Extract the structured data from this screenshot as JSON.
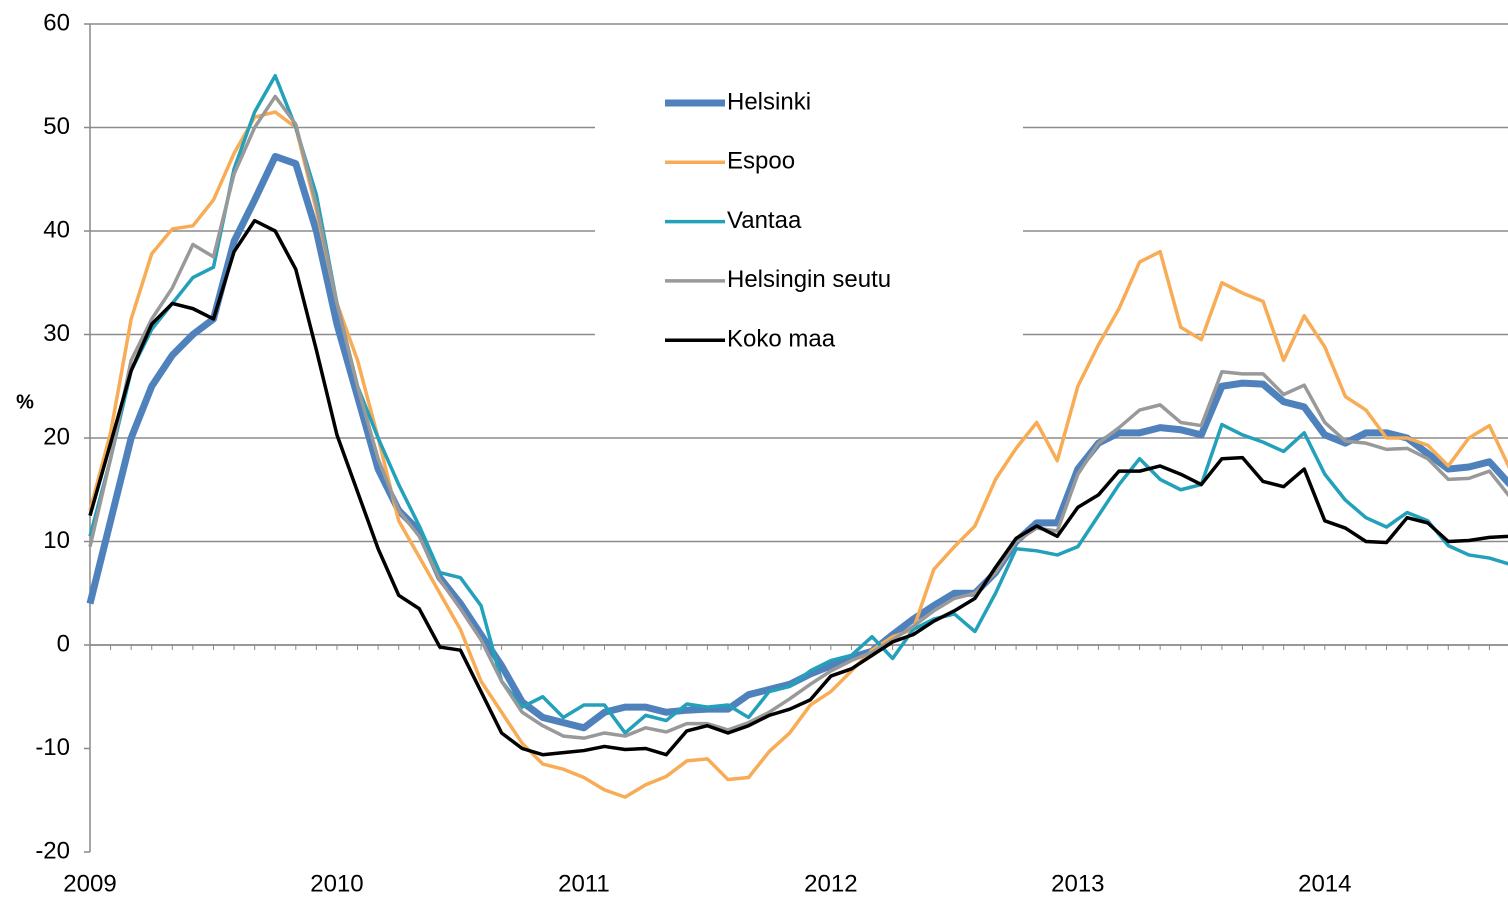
{
  "chart_data": {
    "type": "line",
    "y_label": "%",
    "categories": [
      "2009",
      null,
      null,
      null,
      null,
      null,
      null,
      null,
      null,
      null,
      null,
      null,
      "2010",
      null,
      null,
      null,
      null,
      null,
      null,
      null,
      null,
      null,
      null,
      null,
      "2011",
      null,
      null,
      null,
      null,
      null,
      null,
      null,
      null,
      null,
      null,
      null,
      "2012",
      null,
      null,
      null,
      null,
      null,
      null,
      null,
      null,
      null,
      null,
      null,
      "2013",
      null,
      null,
      null,
      null,
      null,
      null,
      null,
      null,
      null,
      null,
      null,
      "2014",
      null,
      null,
      null,
      null,
      null,
      null,
      null,
      null,
      null
    ],
    "ylim": [
      -20,
      60
    ],
    "yticks": [
      -20,
      -10,
      0,
      10,
      20,
      30,
      40,
      50,
      60
    ],
    "grid": true,
    "series": [
      {
        "name": "Helsinki",
        "color": "#4f81bd",
        "values": [
          4,
          12,
          20,
          25,
          28,
          30,
          31.5,
          39,
          43,
          47.2,
          46.5,
          40,
          31,
          24,
          17,
          13,
          11,
          6.5,
          4,
          1,
          -2,
          -5.5,
          -7,
          -7.5,
          -8,
          -6.5,
          -6,
          -6,
          -6.5,
          -6.3,
          -6.2,
          -6.2,
          -4.8,
          -4.3,
          -3.8,
          -2.8,
          -2,
          -1.2,
          -0.6,
          1,
          2.5,
          3.8,
          5,
          5,
          7,
          10,
          11.8,
          11.8,
          17,
          19.5,
          20.5,
          20.5,
          21,
          20.8,
          20.3,
          25,
          25.3,
          25.2,
          23.5,
          23,
          20.3,
          19.5,
          20.5,
          20.5,
          20,
          18.5,
          17,
          17.2,
          17.7,
          15.5
        ]
      },
      {
        "name": "Espoo",
        "color": "#f7ac55",
        "values": [
          13,
          20.5,
          31.5,
          37.8,
          40.2,
          40.5,
          43,
          47.5,
          51,
          51.5,
          50,
          42,
          33,
          27.5,
          20,
          12,
          8.5,
          5,
          1.5,
          -3.5,
          -6.5,
          -9.5,
          -11.5,
          -12,
          -12.8,
          -14,
          -14.7,
          -13.5,
          -12.7,
          -11.2,
          -11,
          -13,
          -12.8,
          -10.3,
          -8.5,
          -5.8,
          -4.5,
          -2.5,
          -0.5,
          0.8,
          1.5,
          7.3,
          9.5,
          11.5,
          16,
          19,
          21.5,
          17.8,
          25,
          29,
          32.5,
          37,
          38,
          30.7,
          29.5,
          35,
          34,
          33.2,
          27.5,
          31.8,
          28.8,
          24,
          22.7,
          20,
          20,
          19.3,
          17.3,
          20,
          21.2,
          17
        ]
      },
      {
        "name": "Vantaa",
        "color": "#23a0ba",
        "values": [
          10.5,
          18,
          26.5,
          30.5,
          33,
          35.5,
          36.5,
          46,
          51.5,
          55,
          50,
          43.5,
          33,
          25,
          20,
          15.5,
          11.5,
          7,
          6.5,
          3.8,
          -3.5,
          -6,
          -5,
          -7,
          -5.8,
          -5.8,
          -8.5,
          -6.8,
          -7.3,
          -5.7,
          -6,
          -5.8,
          -7,
          -4.5,
          -4,
          -2.5,
          -1.5,
          -1,
          0.8,
          -1.3,
          1.5,
          2.5,
          3,
          1.3,
          5,
          9.3,
          9.1,
          8.7,
          9.5,
          12.5,
          15.5,
          18,
          16,
          15,
          15.5,
          21.3,
          20.3,
          19.6,
          18.7,
          20.5,
          16.5,
          14,
          12.3,
          11.4,
          12.8,
          12,
          9.6,
          8.7,
          8.4,
          7.8
        ]
      },
      {
        "name": "Helsingin seutu",
        "color": "#999999",
        "values": [
          9.5,
          18,
          27.5,
          31.5,
          34.5,
          38.7,
          37.5,
          45.5,
          50,
          53,
          50.3,
          42.5,
          33,
          25,
          18,
          13,
          10.5,
          6.3,
          3.5,
          0.5,
          -3.5,
          -6.5,
          -7.8,
          -8.8,
          -9,
          -8.5,
          -8.8,
          -8,
          -8.4,
          -7.6,
          -7.6,
          -8.2,
          -7.5,
          -6.5,
          -5.2,
          -3.8,
          -2.5,
          -1.5,
          -0.7,
          0.5,
          1.8,
          3.3,
          4.5,
          5,
          7,
          10,
          11.3,
          11,
          16.5,
          19.5,
          21,
          22.7,
          23.2,
          21.5,
          21.2,
          26.4,
          26.2,
          26.2,
          24.2,
          25.1,
          21.5,
          19.7,
          19.5,
          18.9,
          19,
          18,
          16,
          16.1,
          16.8,
          14.3
        ]
      },
      {
        "name": "Koko maa",
        "color": "#000000",
        "values": [
          12.5,
          19.5,
          26.5,
          31,
          33,
          32.5,
          31.5,
          38,
          41,
          40,
          36.3,
          28.5,
          20.3,
          14.8,
          9.3,
          4.8,
          3.5,
          -0.2,
          -0.5,
          -4.5,
          -8.5,
          -10,
          -10.6,
          -10.4,
          -10.2,
          -9.8,
          -10.1,
          -10,
          -10.6,
          -8.3,
          -7.8,
          -8.5,
          -7.8,
          -6.8,
          -6.2,
          -5.3,
          -3,
          -2.3,
          -1,
          0.3,
          1,
          2.3,
          3.3,
          4.5,
          7.5,
          10.3,
          11.5,
          10.5,
          13.3,
          14.5,
          16.8,
          16.8,
          17.3,
          16.5,
          15.5,
          18,
          18.1,
          15.8,
          15.3,
          17,
          12,
          11.3,
          10,
          9.9,
          12.3,
          11.8,
          10,
          10.1,
          10.4,
          10.5
        ]
      }
    ]
  }
}
